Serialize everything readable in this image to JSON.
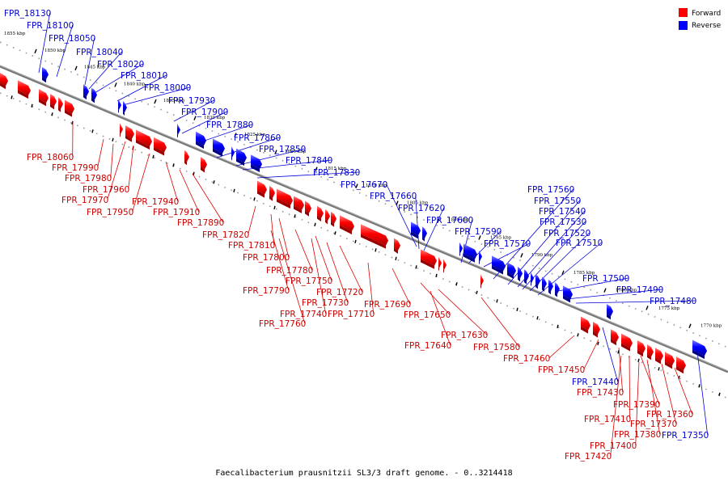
{
  "colors": {
    "forward": "#ff0000",
    "reverse": "#0000ff",
    "forward_label": "#cc0000",
    "reverse_label": "#0000cc",
    "axis": "#777777"
  },
  "legend": {
    "forward_label": "Forward",
    "reverse_label": "Reverse"
  },
  "caption": "Faecalibacterium prausnitzii SL3/3 draft genome. - 0..3214418",
  "scale_labels": [
    "1855 kbp",
    "1850 kbp",
    "1845 kbp",
    "1840 kbp",
    "1835 kbp",
    "1830 kbp",
    "1825 kbp",
    "1820 kbp",
    "1815 kbp",
    "1810 kbp",
    "1805 kbp",
    "1800 kbp",
    "1795 kbp",
    "1790 kbp",
    "1785 kbp",
    "1780 kbp",
    "1775 kbp",
    "1770 kbp"
  ],
  "forward_genes": [
    "FPR_18060",
    "FPR_17990",
    "FPR_17980",
    "FPR_17970",
    "FPR_17960",
    "FPR_17950",
    "FPR_17940",
    "FPR_17910",
    "FPR_17890",
    "FPR_17820",
    "FPR_17810",
    "FPR_17800",
    "FPR_17790",
    "FPR_17780",
    "FPR_17760",
    "FPR_17750",
    "FPR_17740",
    "FPR_17730",
    "FPR_17720",
    "FPR_17710",
    "FPR_17690",
    "FPR_17650",
    "FPR_17640",
    "FPR_17630",
    "FPR_17580",
    "FPR_17460",
    "FPR_17450",
    "FPR_17430",
    "FPR_17420",
    "FPR_17410",
    "FPR_17400",
    "FPR_17390",
    "FPR_17380",
    "FPR_17370",
    "FPR_17360"
  ],
  "reverse_genes": [
    "FPR_18130",
    "FPR_18100",
    "FPR_18050",
    "FPR_18040",
    "FPR_18020",
    "FPR_18010",
    "FPR_18000",
    "FPR_17930",
    "FPR_17900",
    "FPR_17880",
    "FPR_17860",
    "FPR_17850",
    "FPR_17840",
    "FPR_17830",
    "FPR_17670",
    "FPR_17660",
    "FPR_17620",
    "FPR_17600",
    "FPR_17590",
    "FPR_17570",
    "FPR_17560",
    "FPR_17550",
    "FPR_17540",
    "FPR_17530",
    "FPR_17520",
    "FPR_17510",
    "FPR_17500",
    "FPR_17490",
    "FPR_17480",
    "FPR_17440",
    "FPR_17350"
  ]
}
